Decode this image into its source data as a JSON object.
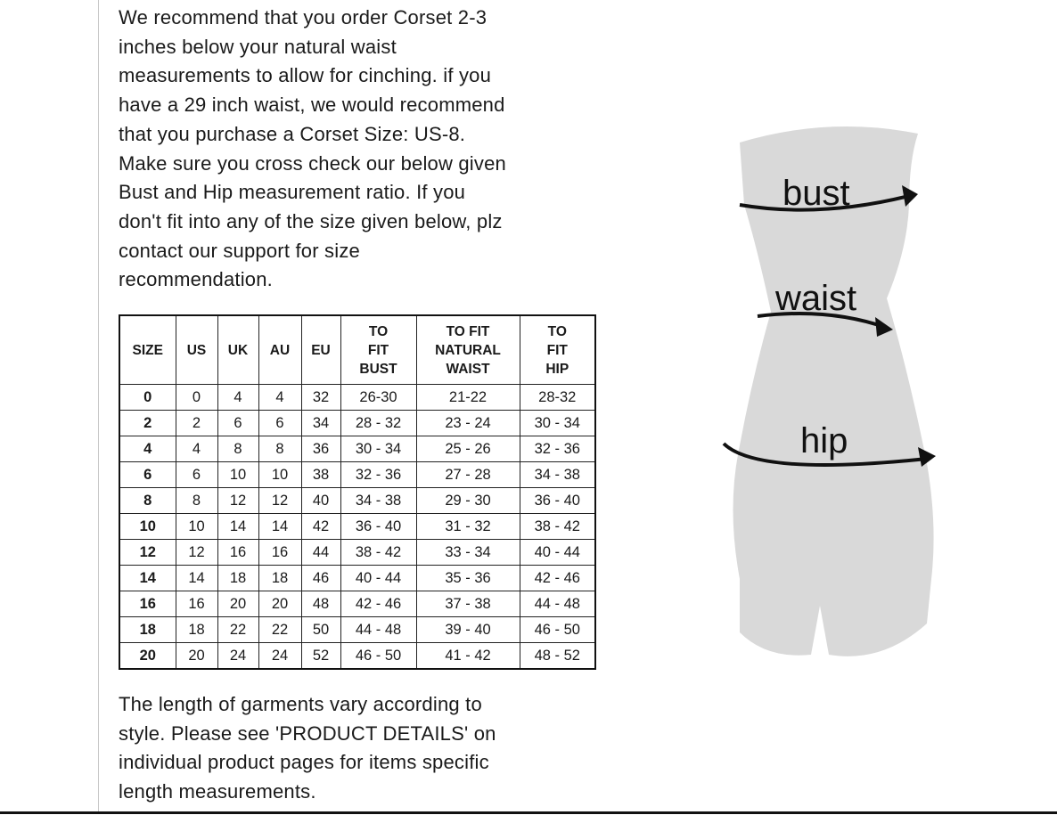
{
  "intro_lines": [
    "We recommend that you order Corset 2-3",
    "inches below your natural waist",
    "measurements to allow for cinching. if you",
    "have a 29 inch waist, we would recommend",
    "that you purchase a Corset Size: US-8.",
    "Make sure you cross check our below given",
    "Bust and Hip measurement ratio. If you",
    "don't fit into any of the size given below, plz",
    "contact our support for size",
    "recommendation."
  ],
  "table": {
    "headers": [
      "SIZE",
      "US",
      "UK",
      "AU",
      "EU",
      "TO\nFIT\nBUST",
      "TO FIT\nNATURAL\nWAIST",
      "TO\nFIT\nHIP"
    ],
    "rows": [
      [
        "0",
        "0",
        "4",
        "4",
        "32",
        "26-30",
        "21-22",
        "28-32"
      ],
      [
        "2",
        "2",
        "6",
        "6",
        "34",
        "28 - 32",
        "23 - 24",
        "30 - 34"
      ],
      [
        "4",
        "4",
        "8",
        "8",
        "36",
        "30 - 34",
        "25 - 26",
        "32 - 36"
      ],
      [
        "6",
        "6",
        "10",
        "10",
        "38",
        "32 - 36",
        "27 - 28",
        "34 - 38"
      ],
      [
        "8",
        "8",
        "12",
        "12",
        "40",
        "34 - 38",
        "29 - 30",
        "36 - 40"
      ],
      [
        "10",
        "10",
        "14",
        "14",
        "42",
        "36 - 40",
        "31 - 32",
        "38 - 42"
      ],
      [
        "12",
        "12",
        "16",
        "16",
        "44",
        "38 - 42",
        "33 - 34",
        "40 - 44"
      ],
      [
        "14",
        "14",
        "18",
        "18",
        "46",
        "40 - 44",
        "35 - 36",
        "42 - 46"
      ],
      [
        "16",
        "16",
        "20",
        "20",
        "48",
        "42 - 46",
        "37 - 38",
        "44 - 48"
      ],
      [
        "18",
        "18",
        "22",
        "22",
        "50",
        "44 - 48",
        "39 - 40",
        "46 - 50"
      ],
      [
        "20",
        "20",
        "24",
        "24",
        "52",
        "46 - 50",
        "41 - 42",
        "48 - 52"
      ]
    ]
  },
  "outro_lines": [
    "The length of garments vary according to",
    "style. Please see 'PRODUCT DETAILS'  on",
    "individual product pages for items specific",
    "length measurements."
  ],
  "figure": {
    "labels": {
      "bust": "bust",
      "waist": "waist",
      "hip": "hip"
    },
    "body_color": "#d9d9d9"
  }
}
